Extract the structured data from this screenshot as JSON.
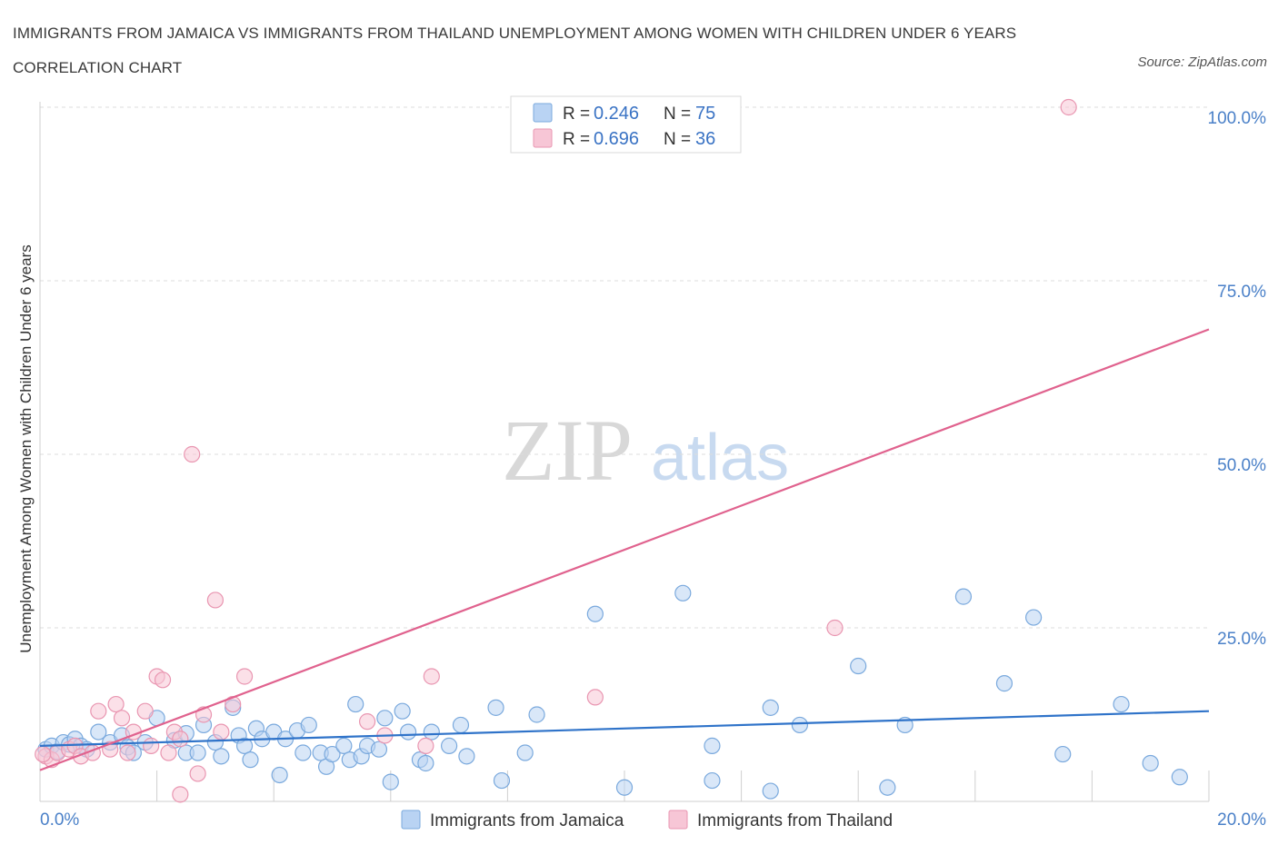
{
  "title": "IMMIGRANTS FROM JAMAICA VS IMMIGRANTS FROM THAILAND UNEMPLOYMENT AMONG WOMEN WITH CHILDREN UNDER 6 YEARS CORRELATION CHART",
  "source": "Source: ZipAtlas.com",
  "watermark": {
    "zip": "ZIP",
    "atlas": "atlas"
  },
  "legend": {
    "rows": [
      {
        "r_label": "R =",
        "r_value": "0.246",
        "n_label": "N =",
        "n_value": "75"
      },
      {
        "r_label": "R =",
        "r_value": "0.696",
        "n_label": "N =",
        "n_value": "36"
      }
    ]
  },
  "bottom_legend": [
    "Immigrants from Jamaica",
    "Immigrants from Thailand"
  ],
  "colors": {
    "jamaica_fill": "#b9d3f3",
    "jamaica_stroke": "#7aa9dd",
    "jamaica_line": "#2f73c9",
    "thailand_fill": "#f7c6d6",
    "thailand_stroke": "#e996b1",
    "thailand_line": "#e0628e",
    "tick_text": "#4a80c8",
    "grid": "#dddddd"
  },
  "chart_data": {
    "type": "scatter",
    "ylabel": "Unemployment Among Women with Children Under 6 years",
    "xlabel": "",
    "xlim": [
      0,
      20
    ],
    "ylim": [
      0,
      100
    ],
    "x_tick_labels": [
      "0.0%",
      "20.0%"
    ],
    "y_tick_labels": [
      "25.0%",
      "50.0%",
      "75.0%",
      "100.0%"
    ],
    "y_ticks": [
      25,
      50,
      75,
      100
    ],
    "grid": true,
    "legend_position": "top-center",
    "series": [
      {
        "name": "Immigrants from Jamaica",
        "R": 0.246,
        "N": 75,
        "trend": {
          "x": [
            0,
            20
          ],
          "y": [
            8.0,
            13.0
          ]
        },
        "points": [
          [
            0.1,
            7.5
          ],
          [
            0.2,
            8.0
          ],
          [
            0.3,
            7.2
          ],
          [
            0.4,
            8.5
          ],
          [
            0.5,
            8.2
          ],
          [
            0.6,
            9.0
          ],
          [
            0.7,
            8.0
          ],
          [
            0.8,
            7.5
          ],
          [
            1.0,
            10.0
          ],
          [
            1.2,
            8.5
          ],
          [
            1.4,
            9.5
          ],
          [
            1.5,
            7.8
          ],
          [
            1.6,
            7.0
          ],
          [
            1.8,
            8.5
          ],
          [
            2.0,
            12.0
          ],
          [
            2.3,
            8.8
          ],
          [
            2.5,
            9.8
          ],
          [
            2.5,
            7.0
          ],
          [
            2.7,
            7.0
          ],
          [
            2.8,
            11.0
          ],
          [
            3.0,
            8.5
          ],
          [
            3.1,
            6.5
          ],
          [
            3.3,
            13.5
          ],
          [
            3.4,
            9.5
          ],
          [
            3.5,
            8.0
          ],
          [
            3.6,
            6.0
          ],
          [
            3.7,
            10.5
          ],
          [
            3.8,
            9.0
          ],
          [
            4.0,
            10.0
          ],
          [
            4.1,
            3.8
          ],
          [
            4.2,
            9.0
          ],
          [
            4.4,
            10.2
          ],
          [
            4.5,
            7.0
          ],
          [
            4.6,
            11.0
          ],
          [
            4.8,
            7.0
          ],
          [
            4.9,
            5.0
          ],
          [
            5.0,
            6.8
          ],
          [
            5.2,
            8.0
          ],
          [
            5.3,
            6.0
          ],
          [
            5.4,
            14.0
          ],
          [
            5.5,
            6.5
          ],
          [
            5.6,
            8.0
          ],
          [
            5.8,
            7.5
          ],
          [
            5.9,
            12.0
          ],
          [
            6.0,
            2.8
          ],
          [
            6.2,
            13.0
          ],
          [
            6.3,
            10.0
          ],
          [
            6.5,
            6.0
          ],
          [
            6.6,
            5.5
          ],
          [
            6.7,
            10.0
          ],
          [
            7.0,
            8.0
          ],
          [
            7.2,
            11.0
          ],
          [
            7.3,
            6.5
          ],
          [
            7.8,
            13.5
          ],
          [
            7.9,
            3.0
          ],
          [
            8.3,
            7.0
          ],
          [
            8.5,
            12.5
          ],
          [
            9.5,
            27.0
          ],
          [
            10.0,
            2.0
          ],
          [
            11.0,
            30.0
          ],
          [
            11.5,
            3.0
          ],
          [
            11.5,
            8.0
          ],
          [
            12.5,
            1.5
          ],
          [
            12.5,
            13.5
          ],
          [
            13.0,
            11.0
          ],
          [
            14.0,
            19.5
          ],
          [
            14.5,
            2.0
          ],
          [
            14.8,
            11.0
          ],
          [
            15.8,
            29.5
          ],
          [
            16.5,
            17.0
          ],
          [
            17.0,
            26.5
          ],
          [
            17.5,
            6.8
          ],
          [
            18.5,
            14.0
          ],
          [
            19.0,
            5.5
          ],
          [
            19.5,
            3.5
          ]
        ]
      },
      {
        "name": "Immigrants from Thailand",
        "R": 0.696,
        "N": 36,
        "trend": {
          "x": [
            0,
            20
          ],
          "y": [
            4.5,
            68.0
          ]
        },
        "points": [
          [
            0.1,
            6.5
          ],
          [
            0.2,
            6.0
          ],
          [
            0.3,
            7.0
          ],
          [
            0.5,
            7.5
          ],
          [
            0.6,
            8.0
          ],
          [
            0.7,
            6.5
          ],
          [
            0.9,
            7.0
          ],
          [
            1.0,
            13.0
          ],
          [
            1.2,
            7.5
          ],
          [
            1.3,
            14.0
          ],
          [
            1.4,
            12.0
          ],
          [
            1.5,
            7.0
          ],
          [
            1.6,
            10.0
          ],
          [
            1.8,
            13.0
          ],
          [
            1.9,
            8.0
          ],
          [
            2.0,
            18.0
          ],
          [
            2.1,
            17.5
          ],
          [
            2.2,
            7.0
          ],
          [
            2.3,
            10.0
          ],
          [
            2.4,
            9.0
          ],
          [
            2.4,
            1.0
          ],
          [
            2.6,
            50.0
          ],
          [
            2.7,
            4.0
          ],
          [
            2.8,
            12.5
          ],
          [
            3.0,
            29.0
          ],
          [
            3.1,
            10.0
          ],
          [
            3.3,
            14.0
          ],
          [
            3.5,
            18.0
          ],
          [
            5.6,
            11.5
          ],
          [
            5.9,
            9.5
          ],
          [
            6.6,
            8.0
          ],
          [
            6.7,
            18.0
          ],
          [
            9.5,
            15.0
          ],
          [
            13.6,
            25.0
          ],
          [
            17.6,
            100.0
          ],
          [
            0.05,
            6.8
          ]
        ]
      }
    ]
  }
}
